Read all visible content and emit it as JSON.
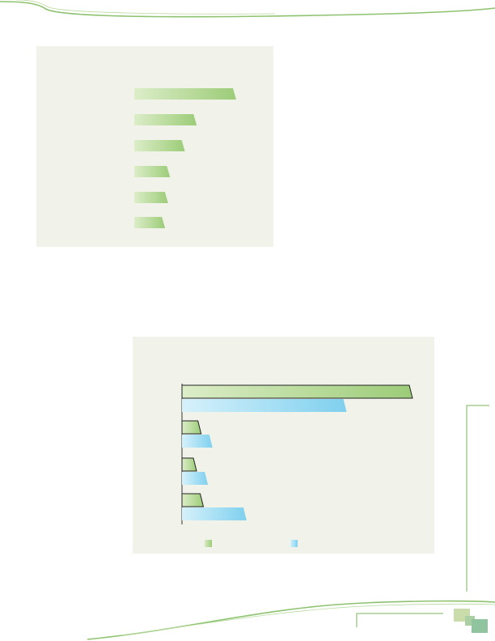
{
  "colors": {
    "panel_background": "#f1f3ea",
    "green_bar": "#9ccc78",
    "blue_bar": "#7fd0ee",
    "decorative_green": "#8dc26f",
    "corner_square_light": "#c9dcaa",
    "corner_square_dark": "#8fc49f"
  },
  "chart_data": [
    {
      "type": "bar",
      "orientation": "horizontal",
      "title": "",
      "xlabel": "",
      "ylabel": "",
      "categories": [
        "",
        "",
        "",
        "",
        "",
        ""
      ],
      "series": [
        {
          "values": [
            100,
            60,
            48,
            33,
            31,
            28
          ]
        }
      ],
      "xlim": [
        0,
        100
      ],
      "grid": false,
      "legend": "none"
    },
    {
      "type": "bar",
      "orientation": "horizontal",
      "title": "",
      "xlabel": "",
      "ylabel": "",
      "categories": [
        "",
        "",
        "",
        ""
      ],
      "series": [
        {
          "values": [
            100,
            7,
            5,
            8
          ]
        },
        {
          "values": [
            71,
            12,
            10,
            27
          ]
        }
      ],
      "xlim": [
        0,
        100
      ],
      "grid": false,
      "legend": "bottom"
    }
  ],
  "icons": {
    "top_wave": "decorative-wave",
    "bottom_wave": "decorative-wave",
    "corner": "overlapping-squares"
  }
}
